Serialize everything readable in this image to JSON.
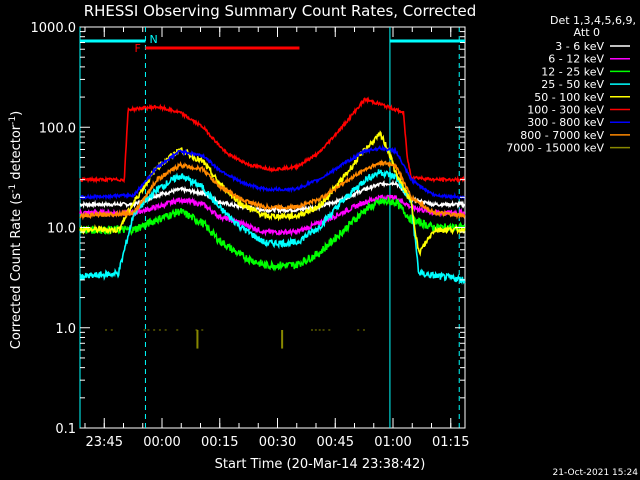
{
  "chart_data": {
    "type": "line",
    "title": "RHESSI Observing Summary Count Rates, Corrected",
    "xlabel": "Start Time (20-Mar-14 23:38:42)",
    "ylabel_main": "Corrected Count Rate (s",
    "ylabel_sup1": "-1",
    "ylabel_mid": " detector",
    "ylabel_sup2": "-1",
    "ylabel_end": ")",
    "yscale": "log",
    "ylim": [
      0.1,
      1000
    ],
    "xlim_minutes": [
      0,
      100
    ],
    "x_ticks": [
      {
        "label": "23:45",
        "minute": 6.3
      },
      {
        "label": "00:00",
        "minute": 21.3
      },
      {
        "label": "00:15",
        "minute": 36.3
      },
      {
        "label": "00:30",
        "minute": 51.3
      },
      {
        "label": "00:45",
        "minute": 66.3
      },
      {
        "label": "01:00",
        "minute": 81.3
      },
      {
        "label": "01:15",
        "minute": 96.3
      }
    ],
    "y_ticks": [
      {
        "label": "0.1",
        "value": 0.1
      },
      {
        "label": "1.0",
        "value": 1
      },
      {
        "label": "10.0",
        "value": 10
      },
      {
        "label": "100.0",
        "value": 100
      },
      {
        "label": "1000.0",
        "value": 1000
      }
    ],
    "legend_header_1": "Det 1,3,4,5,6,9,",
    "legend_header_2": "Att 0",
    "series": [
      {
        "name": "3 - 6 keV",
        "color": "#ffffff",
        "x": [
          0,
          14,
          20,
          26,
          32,
          36,
          42,
          48,
          56,
          62,
          68,
          74,
          78,
          82,
          86,
          92,
          100
        ],
        "y": [
          17,
          17,
          21,
          24,
          22,
          18,
          16,
          15,
          15,
          16,
          19,
          24,
          27,
          28,
          19,
          17,
          17
        ]
      },
      {
        "name": "6 - 12 keV",
        "color": "#ff00ff",
        "x": [
          0,
          14,
          20,
          26,
          32,
          36,
          42,
          48,
          56,
          62,
          68,
          74,
          78,
          82,
          86,
          92,
          100
        ],
        "y": [
          14,
          14,
          16,
          19,
          17,
          13,
          11,
          9,
          9,
          11,
          14,
          18,
          20,
          20,
          16,
          14,
          14
        ]
      },
      {
        "name": "12 - 25 keV",
        "color": "#00ff00",
        "x": [
          0,
          14,
          20,
          26,
          32,
          36,
          42,
          48,
          56,
          62,
          68,
          74,
          78,
          82,
          86,
          92,
          100
        ],
        "y": [
          9.5,
          9.5,
          12,
          14.5,
          11,
          7.5,
          5.2,
          4.2,
          4.2,
          5.5,
          9,
          15,
          18,
          18,
          12,
          10,
          10
        ]
      },
      {
        "name": "25 - 50 keV",
        "color": "#00ffff",
        "x": [
          0,
          10,
          14,
          20,
          26,
          32,
          36,
          42,
          48,
          56,
          62,
          68,
          74,
          78,
          82,
          86,
          88,
          92,
          100
        ],
        "y": [
          3.2,
          3.5,
          14,
          24,
          33,
          25,
          16,
          10,
          7,
          7,
          10,
          18,
          30,
          36,
          32,
          18,
          3.5,
          3.3,
          3
        ]
      },
      {
        "name": "50 - 100 keV",
        "color": "#ffff00",
        "x": [
          0,
          10,
          14,
          20,
          26,
          32,
          36,
          42,
          48,
          56,
          62,
          68,
          74,
          78,
          80,
          82,
          86,
          88,
          92,
          100
        ],
        "y": [
          9.5,
          9.5,
          18,
          40,
          60,
          45,
          28,
          17,
          13,
          13,
          16,
          30,
          60,
          85,
          60,
          35,
          18,
          5.5,
          9.5,
          9.5
        ]
      },
      {
        "name": "100 - 300 keV",
        "color": "#ff0000",
        "x": [
          0,
          11.5,
          12.5,
          20,
          26,
          32,
          38,
          44,
          50,
          56,
          62,
          68,
          74,
          78,
          84,
          85,
          86,
          92,
          100
        ],
        "y": [
          30,
          30,
          150,
          160,
          140,
          100,
          55,
          42,
          38,
          40,
          55,
          100,
          190,
          170,
          140,
          50,
          32,
          30,
          30
        ]
      },
      {
        "name": "300 - 800 keV",
        "color": "#0000ff",
        "x": [
          0,
          14,
          20,
          26,
          32,
          36,
          42,
          48,
          56,
          62,
          68,
          74,
          78,
          82,
          86,
          92,
          100
        ],
        "y": [
          20,
          21,
          40,
          58,
          52,
          38,
          28,
          24,
          24,
          30,
          42,
          58,
          62,
          58,
          30,
          21,
          20
        ]
      },
      {
        "name": "800 - 7000 keV",
        "color": "#ff8800",
        "x": [
          0,
          14,
          20,
          26,
          32,
          36,
          42,
          48,
          56,
          62,
          68,
          74,
          78,
          82,
          86,
          92,
          100
        ],
        "y": [
          13,
          14,
          30,
          42,
          38,
          26,
          19,
          16,
          16,
          19,
          27,
          38,
          44,
          42,
          20,
          14,
          13
        ]
      },
      {
        "name": "7000 - 15000 keV",
        "color": "#888800",
        "x": [
          6.5,
          8,
          16.5,
          17.5,
          19,
          20.5,
          22,
          25,
          30,
          31.5,
          60,
          61,
          62,
          63,
          64.5,
          72,
          73.5
        ],
        "y": [
          0.95,
          0.95,
          0.95,
          0.95,
          0.95,
          0.95,
          0.95,
          0.95,
          0.95,
          0.95,
          0.95,
          0.95,
          0.95,
          0.95,
          0.95,
          0.95,
          0.95
        ]
      }
    ],
    "spikes_7000_15000": [
      {
        "minute": 30.5,
        "value": 0.62
      },
      {
        "minute": 52.5,
        "value": 0.62
      }
    ],
    "flag_bars": {
      "night_label": "N",
      "flare_label": "F",
      "night": [
        [
          0,
          17
        ],
        [
          80.5,
          100
        ]
      ],
      "flare": [
        [
          17,
          57
        ]
      ],
      "night_color": "#00ffff",
      "flare_color": "#ff0000"
    },
    "vertical_markers": [
      {
        "minute": 0,
        "style": "solid"
      },
      {
        "minute": 17,
        "style": "dashed"
      },
      {
        "minute": 80.5,
        "style": "solid"
      },
      {
        "minute": 98.5,
        "style": "dashed"
      }
    ],
    "timestamp": "21-Oct-2021 15:24"
  }
}
